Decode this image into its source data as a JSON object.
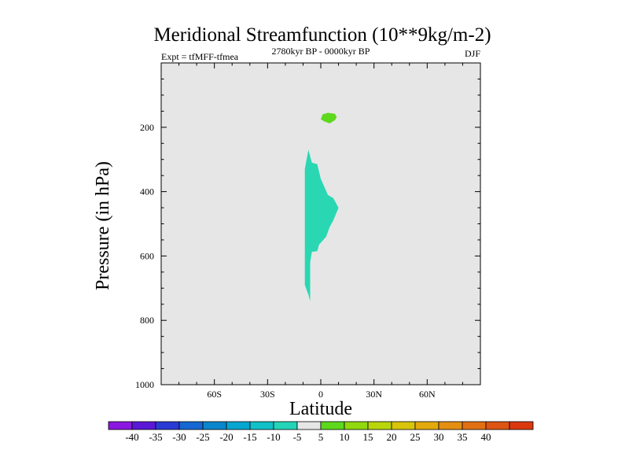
{
  "chart_data": {
    "type": "contour",
    "title": "Meridional Streamfunction (10**9kg/m-2)",
    "subtitle_left": "Expt = tfMFF-tfmea",
    "subtitle_center": "2780kyr BP - 0000kyr BP",
    "subtitle_right": "DJF",
    "xlabel": "Latitude",
    "ylabel": "Pressure (in hPa)",
    "xlim": [
      -90,
      90
    ],
    "ylim": [
      1000,
      0
    ],
    "x_ticks": [
      {
        "value": -60,
        "label": "60S"
      },
      {
        "value": -30,
        "label": "30S"
      },
      {
        "value": 0,
        "label": "0"
      },
      {
        "value": 30,
        "label": "30N"
      },
      {
        "value": 60,
        "label": "60N"
      }
    ],
    "y_ticks": [
      {
        "value": 200,
        "label": "200"
      },
      {
        "value": 400,
        "label": "400"
      },
      {
        "value": 600,
        "label": "600"
      },
      {
        "value": 800,
        "label": "800"
      },
      {
        "value": 1000,
        "label": "1000"
      }
    ],
    "background_color": "#e6e6e6",
    "regions": [
      {
        "name": "positive-5-10",
        "level": "5 to 10",
        "color": "#5ed81d",
        "points": [
          [
            0,
            175
          ],
          [
            1,
            160
          ],
          [
            4,
            155
          ],
          [
            8,
            158
          ],
          [
            9,
            168
          ],
          [
            8,
            178
          ],
          [
            5,
            188
          ],
          [
            2,
            182
          ]
        ]
      },
      {
        "name": "negative-10-5",
        "level": "-10 to -5",
        "color": "#2ad7b3",
        "points": [
          [
            -7,
            270
          ],
          [
            -5,
            310
          ],
          [
            -2,
            315
          ],
          [
            0,
            360
          ],
          [
            4,
            410
          ],
          [
            7,
            420
          ],
          [
            10,
            450
          ],
          [
            7,
            490
          ],
          [
            5,
            510
          ],
          [
            3,
            540
          ],
          [
            -1,
            565
          ],
          [
            -2,
            585
          ],
          [
            -5,
            587
          ],
          [
            -6,
            620
          ],
          [
            -6,
            700
          ],
          [
            -6,
            740
          ],
          [
            -7,
            720
          ],
          [
            -9,
            690
          ],
          [
            -9,
            600
          ],
          [
            -9,
            500
          ],
          [
            -9,
            400
          ],
          [
            -9,
            330
          ]
        ]
      }
    ],
    "colorbar": {
      "colors": [
        "#8a18e0",
        "#5a18d6",
        "#2a3ad4",
        "#1568d2",
        "#0a86cc",
        "#06a6d0",
        "#12c0c8",
        "#24d4b8",
        "#e6e6e6",
        "#5ed81d",
        "#92d80e",
        "#b9d60a",
        "#d8c40a",
        "#e2aa0c",
        "#e48e12",
        "#e27012",
        "#dd5512",
        "#dc3810"
      ],
      "labels": [
        "-40",
        "-35",
        "-30",
        "-25",
        "-20",
        "-15",
        "-10",
        "-5",
        "5",
        "10",
        "15",
        "20",
        "25",
        "30",
        "35",
        "40"
      ]
    }
  }
}
